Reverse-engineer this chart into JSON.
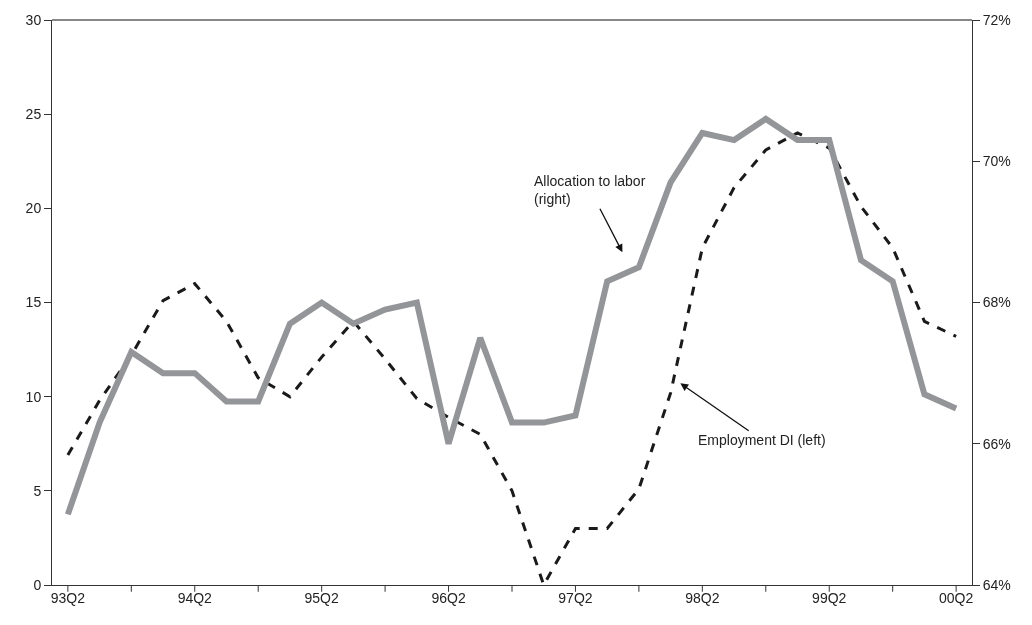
{
  "chart_data": {
    "type": "line",
    "categories": [
      "93Q2",
      null,
      null,
      null,
      "94Q2",
      null,
      null,
      null,
      "95Q2",
      null,
      null,
      null,
      "96Q2",
      null,
      null,
      null,
      "97Q2",
      null,
      null,
      null,
      "98Q2",
      null,
      null,
      null,
      "99Q2",
      null,
      null,
      null,
      "00Q2"
    ],
    "series": [
      {
        "color": "#939598",
        "axis": "y2",
        "line_style": "solid",
        "values": [
          65.0,
          66.3,
          67.3,
          67.0,
          67.0,
          66.6,
          66.6,
          67.7,
          68.0,
          67.7,
          67.9,
          68.0,
          66.0,
          67.5,
          66.3,
          66.3,
          66.4,
          68.3,
          68.5,
          69.7,
          70.4,
          70.3,
          70.6,
          70.3,
          70.3,
          68.6,
          68.3,
          66.7,
          66.5
        ]
      },
      {
        "color": "#1a1a1a",
        "line_style": "dashed",
        "values": [
          6.9,
          9.8,
          12.2,
          15.1,
          16.0,
          14.0,
          11.0,
          10.0,
          12.1,
          14.0,
          12.0,
          9.9,
          8.9,
          8.0,
          5.0,
          0.0,
          3.0,
          3.0,
          5.1,
          10.2,
          17.9,
          21.1,
          23.1,
          24.0,
          23.2,
          20.1,
          17.9,
          14.0,
          13.2
        ]
      }
    ],
    "ylim": [
      0,
      30
    ],
    "yticks": [
      0,
      5,
      10,
      15,
      20,
      25,
      30
    ],
    "y2lim": [
      64,
      72
    ],
    "y2ticks": [
      {
        "value": 64,
        "label": "64%"
      },
      {
        "value": 66,
        "label": "66%"
      },
      {
        "value": 68,
        "label": "68%"
      },
      {
        "value": 70,
        "label": "70%"
      },
      {
        "value": 72,
        "label": "72%"
      }
    ],
    "annotations": [
      "Allocation to labor\n(right)",
      "Employment DI (left)"
    ],
    "grid": false,
    "marker": "none"
  }
}
